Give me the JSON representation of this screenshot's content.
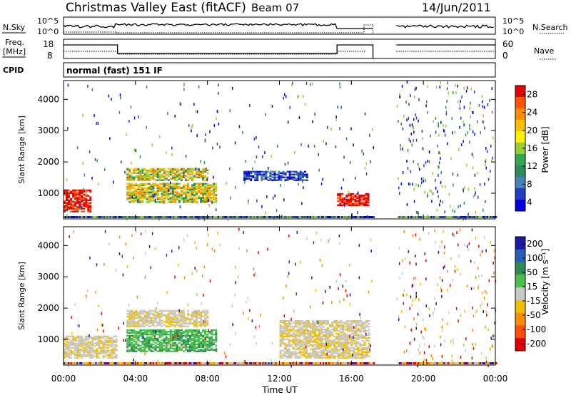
{
  "header": {
    "radar": "Christmas Valley East (fitACF)",
    "beam": "Beam 07",
    "date": "14/Jun/2011"
  },
  "strips": {
    "nsky_label": "N.Sky",
    "nsky_ticks": [
      "10^5",
      "10^0"
    ],
    "nsearch_label": "N.Search",
    "nsearch_ticks": [
      "10^5",
      "10^0"
    ],
    "freq_label": "Freq.",
    "freq_unit": "[MHz]",
    "freq_ticks": [
      "18",
      "8"
    ],
    "nave_label": "Nave",
    "nave_ticks": [
      "60",
      "0"
    ],
    "cpid_label": "CPID",
    "cpid_value": "normal (fast) 151 IF"
  },
  "axes": {
    "ylabel": "Slant Range [km]",
    "yticks": [
      "4000",
      "3000",
      "2000",
      "1000"
    ],
    "xlabel": "Time UT",
    "xticks": [
      "00:00",
      "04:00",
      "08:00",
      "12:00",
      "16:00",
      "20:00",
      "00:00"
    ]
  },
  "colorbars": {
    "power": {
      "label": "Power [dB]",
      "ticks": [
        "28",
        "24",
        "20",
        "16",
        "12",
        "8",
        "4"
      ],
      "colors": [
        "#e80000",
        "#ff5500",
        "#ff8c00",
        "#ffbf00",
        "#ffee00",
        "#9acd32",
        "#32a852",
        "#2e8b57",
        "#4682b4",
        "#1e3fbf",
        "#0000e0"
      ]
    },
    "velocity": {
      "label": "Velocity [m s⁻¹]",
      "ticks": [
        "200",
        "100",
        "50",
        "15",
        "-15",
        "-50",
        "-100",
        "-200"
      ],
      "colors": [
        "#1a1aa6",
        "#2a5db8",
        "#2e8b57",
        "#4cc04c",
        "#c8c8c8",
        "#f0c000",
        "#ff8c00",
        "#ff5000",
        "#e00000"
      ]
    }
  },
  "chart_data": [
    {
      "type": "heatmap",
      "title": "",
      "series_name": "Power",
      "units": "dB",
      "x_range_hours": [
        0,
        24
      ],
      "y_range_km": [
        180,
        4600
      ],
      "color_range": [
        0,
        30
      ],
      "no_data_gap_hours": [
        17.2,
        18.5
      ],
      "regions": [
        {
          "t0": 0.0,
          "t1": 1.5,
          "r0": 400,
          "r1": 1100,
          "level": "high"
        },
        {
          "t0": 3.5,
          "t1": 8.5,
          "r0": 700,
          "r1": 1300,
          "level": "medium"
        },
        {
          "t0": 3.5,
          "t1": 8.0,
          "r0": 1400,
          "r1": 1800,
          "level": "medium"
        },
        {
          "t0": 15.2,
          "t1": 17.0,
          "r0": 600,
          "r1": 1000,
          "level": "high"
        },
        {
          "t0": 10.0,
          "t1": 13.5,
          "r0": 1400,
          "r1": 1700,
          "level": "low"
        }
      ]
    },
    {
      "type": "heatmap",
      "title": "",
      "series_name": "Velocity",
      "units": "m s-1",
      "x_range_hours": [
        0,
        24
      ],
      "y_range_km": [
        180,
        4600
      ],
      "color_range": [
        -200,
        200
      ],
      "no_data_gap_hours": [
        17.2,
        18.5
      ],
      "regions": [
        {
          "t0": 0.0,
          "t1": 3.0,
          "r0": 400,
          "r1": 1100,
          "level": "near-zero"
        },
        {
          "t0": 3.5,
          "t1": 8.5,
          "r0": 600,
          "r1": 1300,
          "level": "positive"
        },
        {
          "t0": 3.5,
          "t1": 8.0,
          "r0": 1400,
          "r1": 1900,
          "level": "near-zero"
        },
        {
          "t0": 12.0,
          "t1": 17.0,
          "r0": 400,
          "r1": 1600,
          "level": "near-zero"
        }
      ]
    }
  ]
}
